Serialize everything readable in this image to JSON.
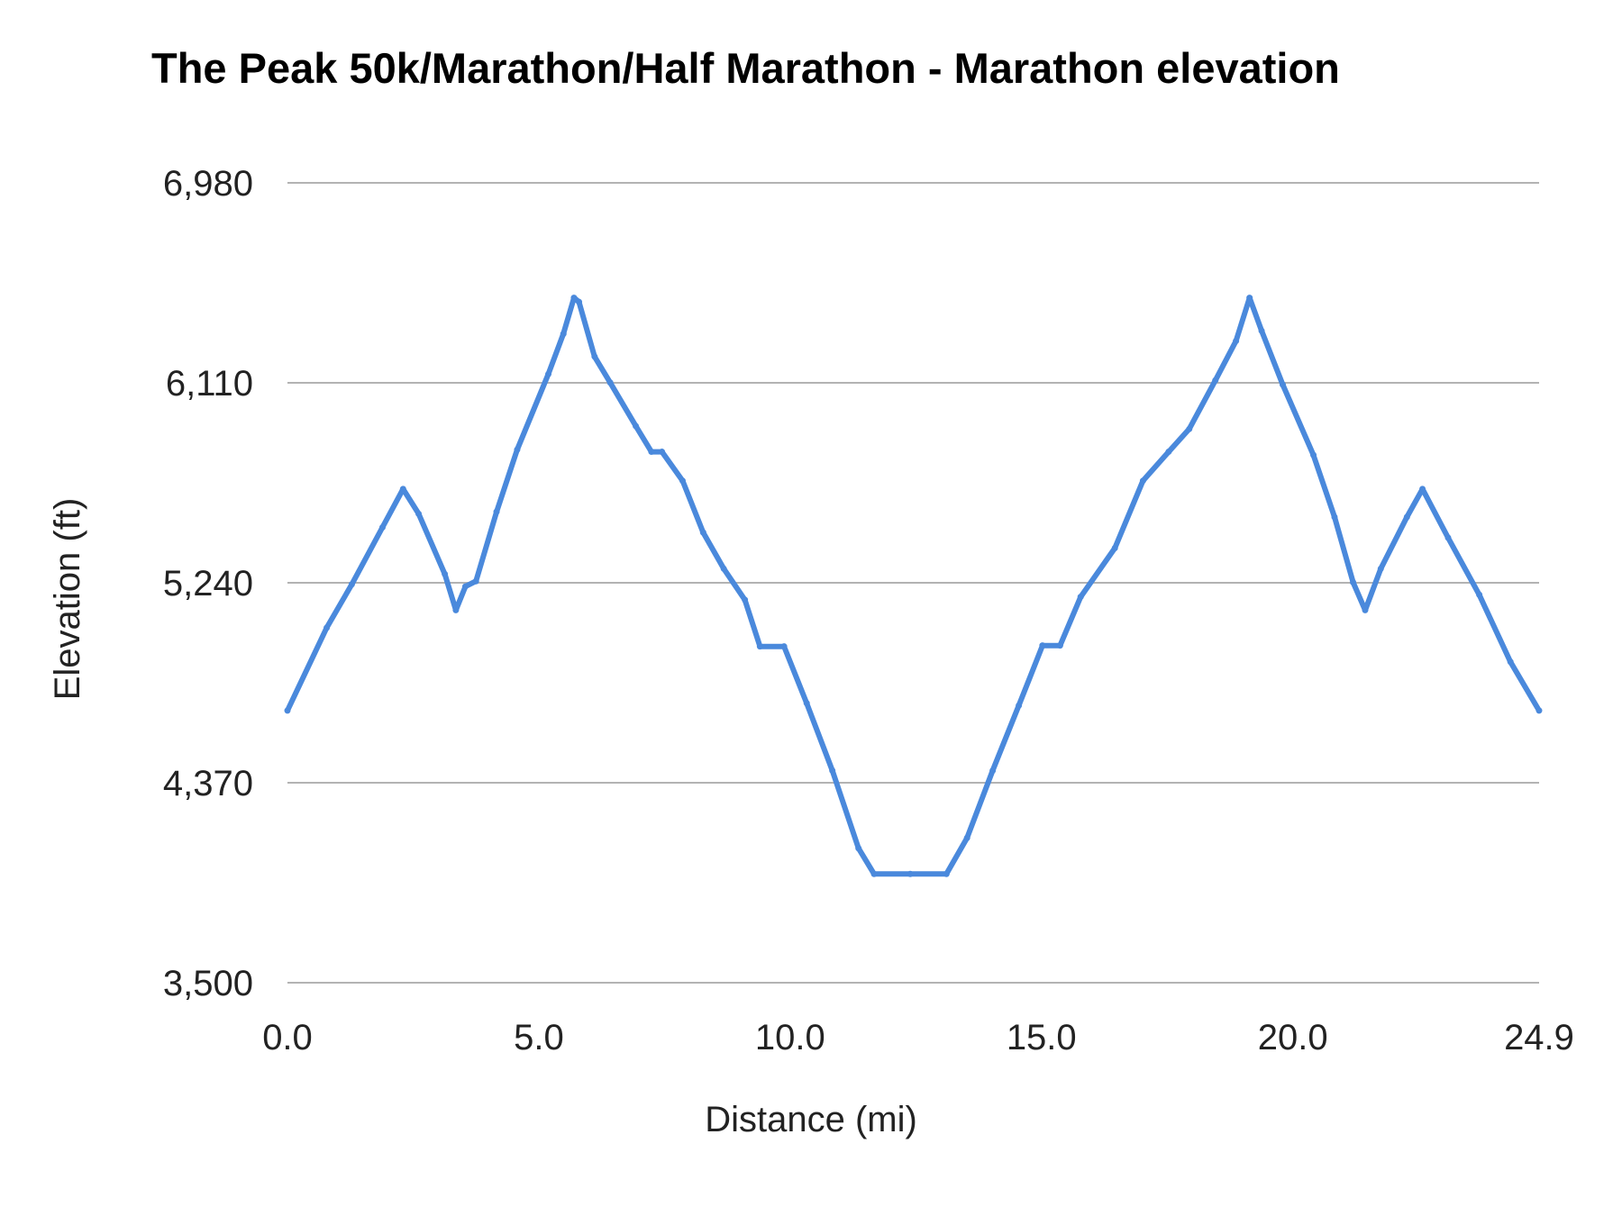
{
  "chart_data": {
    "type": "line",
    "title": "The Peak 50k/Marathon/Half Marathon - Marathon elevation",
    "xlabel": "Distance (mi)",
    "ylabel": "Elevation (ft)",
    "xlim": [
      0,
      24.9
    ],
    "ylim": [
      3500,
      6980
    ],
    "xticks": [
      "0.0",
      "5.0",
      "10.0",
      "15.0",
      "20.0",
      "24.9"
    ],
    "xtick_values": [
      0,
      5,
      10,
      15,
      20,
      24.9
    ],
    "yticks": [
      "3,500",
      "4,370",
      "5,240",
      "6,110",
      "6,980"
    ],
    "ytick_values": [
      3500,
      4370,
      5240,
      6110,
      6980
    ],
    "grid": "horizontal",
    "legend": "none",
    "line_color": "#4a89dc",
    "grid_color": "#b3b3b3",
    "series": [
      {
        "x": [
          0,
          0.78,
          1.28,
          1.89,
          2.3,
          2.61,
          3.13,
          3.35,
          3.54,
          3.75,
          4.16,
          4.57,
          5.19,
          5.49,
          5.7,
          5.8,
          6.11,
          6.42,
          6.93,
          7.24,
          7.45,
          7.86,
          8.27,
          8.68,
          9.1,
          9.4,
          9.88,
          10.33,
          10.84,
          11.36,
          11.67,
          12.39,
          13.11,
          13.52,
          14.03,
          14.55,
          15.02,
          15.37,
          15.78,
          16.46,
          17.02,
          17.53,
          17.94,
          18.46,
          18.87,
          19.14,
          19.38,
          19.8,
          20.41,
          20.83,
          21.2,
          21.44,
          21.75,
          22.27,
          22.58,
          23.09,
          23.71,
          24.33,
          24.9
        ],
        "y": [
          4684,
          5044,
          5233,
          5481,
          5648,
          5540,
          5278,
          5121,
          5224,
          5247,
          5549,
          5819,
          6148,
          6323,
          6480,
          6462,
          6224,
          6111,
          5922,
          5810,
          5810,
          5684,
          5459,
          5301,
          5166,
          4963,
          4963,
          4716,
          4423,
          4085,
          3973,
          3973,
          3973,
          4130,
          4423,
          4706,
          4967,
          4967,
          5179,
          5391,
          5684,
          5810,
          5909,
          6121,
          6292,
          6480,
          6336,
          6102,
          5796,
          5526,
          5242,
          5121,
          5301,
          5526,
          5648,
          5436,
          5188,
          4896,
          4684
        ]
      }
    ]
  }
}
